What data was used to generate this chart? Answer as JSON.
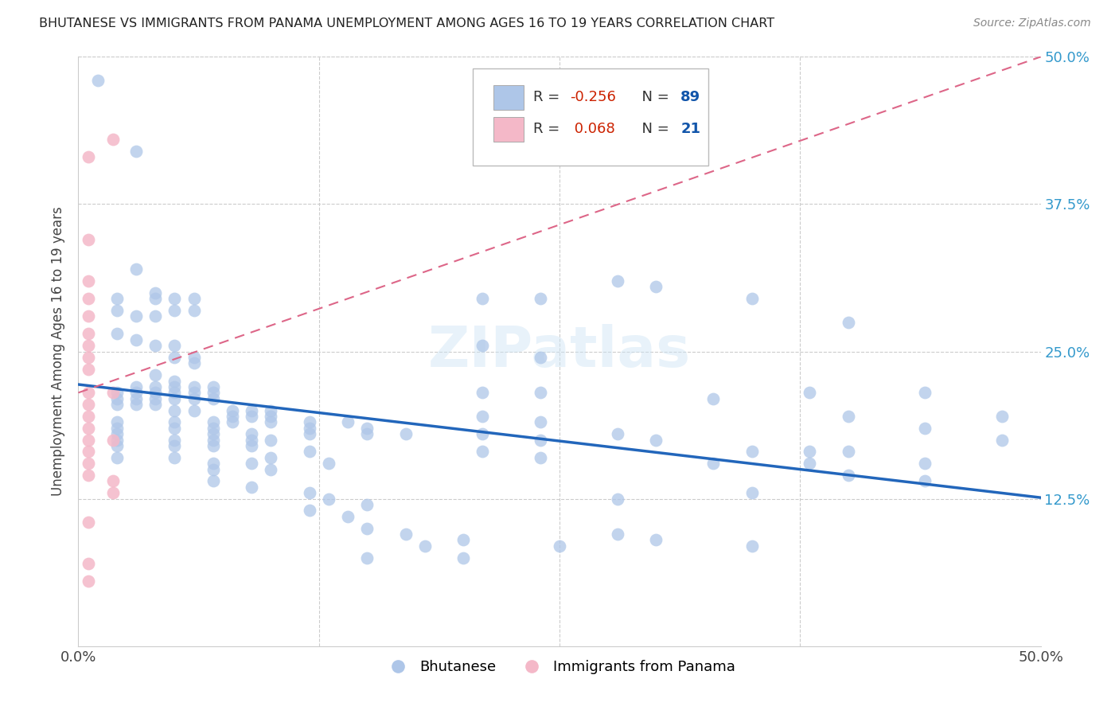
{
  "title": "BHUTANESE VS IMMIGRANTS FROM PANAMA UNEMPLOYMENT AMONG AGES 16 TO 19 YEARS CORRELATION CHART",
  "source": "Source: ZipAtlas.com",
  "ylabel": "Unemployment Among Ages 16 to 19 years",
  "xlim": [
    0.0,
    0.5
  ],
  "ylim": [
    0.0,
    0.5
  ],
  "blue_color": "#aec6e8",
  "pink_color": "#f4b8c8",
  "blue_line_color": "#2266bb",
  "pink_line_color": "#dd6688",
  "watermark": "ZIPatlas",
  "blue_line_x0": 0.0,
  "blue_line_y0": 0.222,
  "blue_line_x1": 0.5,
  "blue_line_y1": 0.126,
  "pink_line_x0": 0.0,
  "pink_line_y0": 0.215,
  "pink_line_x1": 0.5,
  "pink_line_y1": 0.5,
  "blue_points": [
    [
      0.01,
      0.48
    ],
    [
      0.03,
      0.42
    ],
    [
      0.03,
      0.32
    ],
    [
      0.02,
      0.295
    ],
    [
      0.02,
      0.285
    ],
    [
      0.04,
      0.3
    ],
    [
      0.04,
      0.295
    ],
    [
      0.03,
      0.28
    ],
    [
      0.04,
      0.28
    ],
    [
      0.05,
      0.295
    ],
    [
      0.05,
      0.285
    ],
    [
      0.06,
      0.295
    ],
    [
      0.06,
      0.285
    ],
    [
      0.02,
      0.265
    ],
    [
      0.03,
      0.26
    ],
    [
      0.04,
      0.255
    ],
    [
      0.05,
      0.255
    ],
    [
      0.05,
      0.245
    ],
    [
      0.06,
      0.245
    ],
    [
      0.06,
      0.24
    ],
    [
      0.04,
      0.23
    ],
    [
      0.05,
      0.225
    ],
    [
      0.03,
      0.22
    ],
    [
      0.04,
      0.22
    ],
    [
      0.05,
      0.22
    ],
    [
      0.06,
      0.22
    ],
    [
      0.07,
      0.22
    ],
    [
      0.02,
      0.215
    ],
    [
      0.03,
      0.215
    ],
    [
      0.04,
      0.215
    ],
    [
      0.05,
      0.215
    ],
    [
      0.06,
      0.215
    ],
    [
      0.07,
      0.215
    ],
    [
      0.02,
      0.21
    ],
    [
      0.03,
      0.21
    ],
    [
      0.04,
      0.21
    ],
    [
      0.05,
      0.21
    ],
    [
      0.06,
      0.21
    ],
    [
      0.07,
      0.21
    ],
    [
      0.02,
      0.205
    ],
    [
      0.03,
      0.205
    ],
    [
      0.04,
      0.205
    ],
    [
      0.05,
      0.2
    ],
    [
      0.06,
      0.2
    ],
    [
      0.08,
      0.2
    ],
    [
      0.09,
      0.2
    ],
    [
      0.1,
      0.2
    ],
    [
      0.08,
      0.195
    ],
    [
      0.09,
      0.195
    ],
    [
      0.1,
      0.195
    ],
    [
      0.02,
      0.19
    ],
    [
      0.05,
      0.19
    ],
    [
      0.07,
      0.19
    ],
    [
      0.08,
      0.19
    ],
    [
      0.1,
      0.19
    ],
    [
      0.12,
      0.19
    ],
    [
      0.14,
      0.19
    ],
    [
      0.02,
      0.185
    ],
    [
      0.05,
      0.185
    ],
    [
      0.07,
      0.185
    ],
    [
      0.12,
      0.185
    ],
    [
      0.15,
      0.185
    ],
    [
      0.02,
      0.18
    ],
    [
      0.07,
      0.18
    ],
    [
      0.09,
      0.18
    ],
    [
      0.12,
      0.18
    ],
    [
      0.15,
      0.18
    ],
    [
      0.17,
      0.18
    ],
    [
      0.02,
      0.175
    ],
    [
      0.05,
      0.175
    ],
    [
      0.07,
      0.175
    ],
    [
      0.09,
      0.175
    ],
    [
      0.1,
      0.175
    ],
    [
      0.02,
      0.17
    ],
    [
      0.05,
      0.17
    ],
    [
      0.07,
      0.17
    ],
    [
      0.09,
      0.17
    ],
    [
      0.12,
      0.165
    ],
    [
      0.02,
      0.16
    ],
    [
      0.05,
      0.16
    ],
    [
      0.1,
      0.16
    ],
    [
      0.07,
      0.155
    ],
    [
      0.09,
      0.155
    ],
    [
      0.13,
      0.155
    ],
    [
      0.07,
      0.15
    ],
    [
      0.1,
      0.15
    ],
    [
      0.07,
      0.14
    ],
    [
      0.09,
      0.135
    ],
    [
      0.12,
      0.13
    ],
    [
      0.13,
      0.125
    ],
    [
      0.15,
      0.12
    ],
    [
      0.12,
      0.115
    ],
    [
      0.14,
      0.11
    ],
    [
      0.15,
      0.1
    ],
    [
      0.17,
      0.095
    ],
    [
      0.21,
      0.295
    ],
    [
      0.24,
      0.295
    ],
    [
      0.28,
      0.31
    ],
    [
      0.3,
      0.305
    ],
    [
      0.35,
      0.295
    ],
    [
      0.21,
      0.255
    ],
    [
      0.24,
      0.245
    ],
    [
      0.21,
      0.215
    ],
    [
      0.24,
      0.215
    ],
    [
      0.21,
      0.195
    ],
    [
      0.24,
      0.19
    ],
    [
      0.21,
      0.18
    ],
    [
      0.24,
      0.175
    ],
    [
      0.21,
      0.165
    ],
    [
      0.24,
      0.16
    ],
    [
      0.28,
      0.18
    ],
    [
      0.3,
      0.175
    ],
    [
      0.35,
      0.165
    ],
    [
      0.38,
      0.165
    ],
    [
      0.33,
      0.21
    ],
    [
      0.38,
      0.215
    ],
    [
      0.33,
      0.155
    ],
    [
      0.38,
      0.155
    ],
    [
      0.4,
      0.275
    ],
    [
      0.44,
      0.215
    ],
    [
      0.4,
      0.195
    ],
    [
      0.44,
      0.185
    ],
    [
      0.4,
      0.165
    ],
    [
      0.44,
      0.155
    ],
    [
      0.4,
      0.145
    ],
    [
      0.44,
      0.14
    ],
    [
      0.48,
      0.195
    ],
    [
      0.48,
      0.175
    ],
    [
      0.35,
      0.13
    ],
    [
      0.35,
      0.085
    ],
    [
      0.28,
      0.125
    ],
    [
      0.28,
      0.095
    ],
    [
      0.2,
      0.09
    ],
    [
      0.18,
      0.085
    ],
    [
      0.15,
      0.075
    ],
    [
      0.2,
      0.075
    ],
    [
      0.25,
      0.085
    ],
    [
      0.3,
      0.09
    ]
  ],
  "pink_points": [
    [
      0.005,
      0.415
    ],
    [
      0.018,
      0.43
    ],
    [
      0.005,
      0.345
    ],
    [
      0.005,
      0.31
    ],
    [
      0.005,
      0.295
    ],
    [
      0.005,
      0.28
    ],
    [
      0.005,
      0.265
    ],
    [
      0.005,
      0.255
    ],
    [
      0.005,
      0.245
    ],
    [
      0.005,
      0.235
    ],
    [
      0.005,
      0.215
    ],
    [
      0.018,
      0.215
    ],
    [
      0.005,
      0.205
    ],
    [
      0.005,
      0.195
    ],
    [
      0.005,
      0.185
    ],
    [
      0.005,
      0.175
    ],
    [
      0.018,
      0.175
    ],
    [
      0.005,
      0.165
    ],
    [
      0.005,
      0.155
    ],
    [
      0.005,
      0.145
    ],
    [
      0.018,
      0.14
    ],
    [
      0.018,
      0.13
    ],
    [
      0.005,
      0.105
    ],
    [
      0.005,
      0.07
    ],
    [
      0.005,
      0.055
    ]
  ]
}
